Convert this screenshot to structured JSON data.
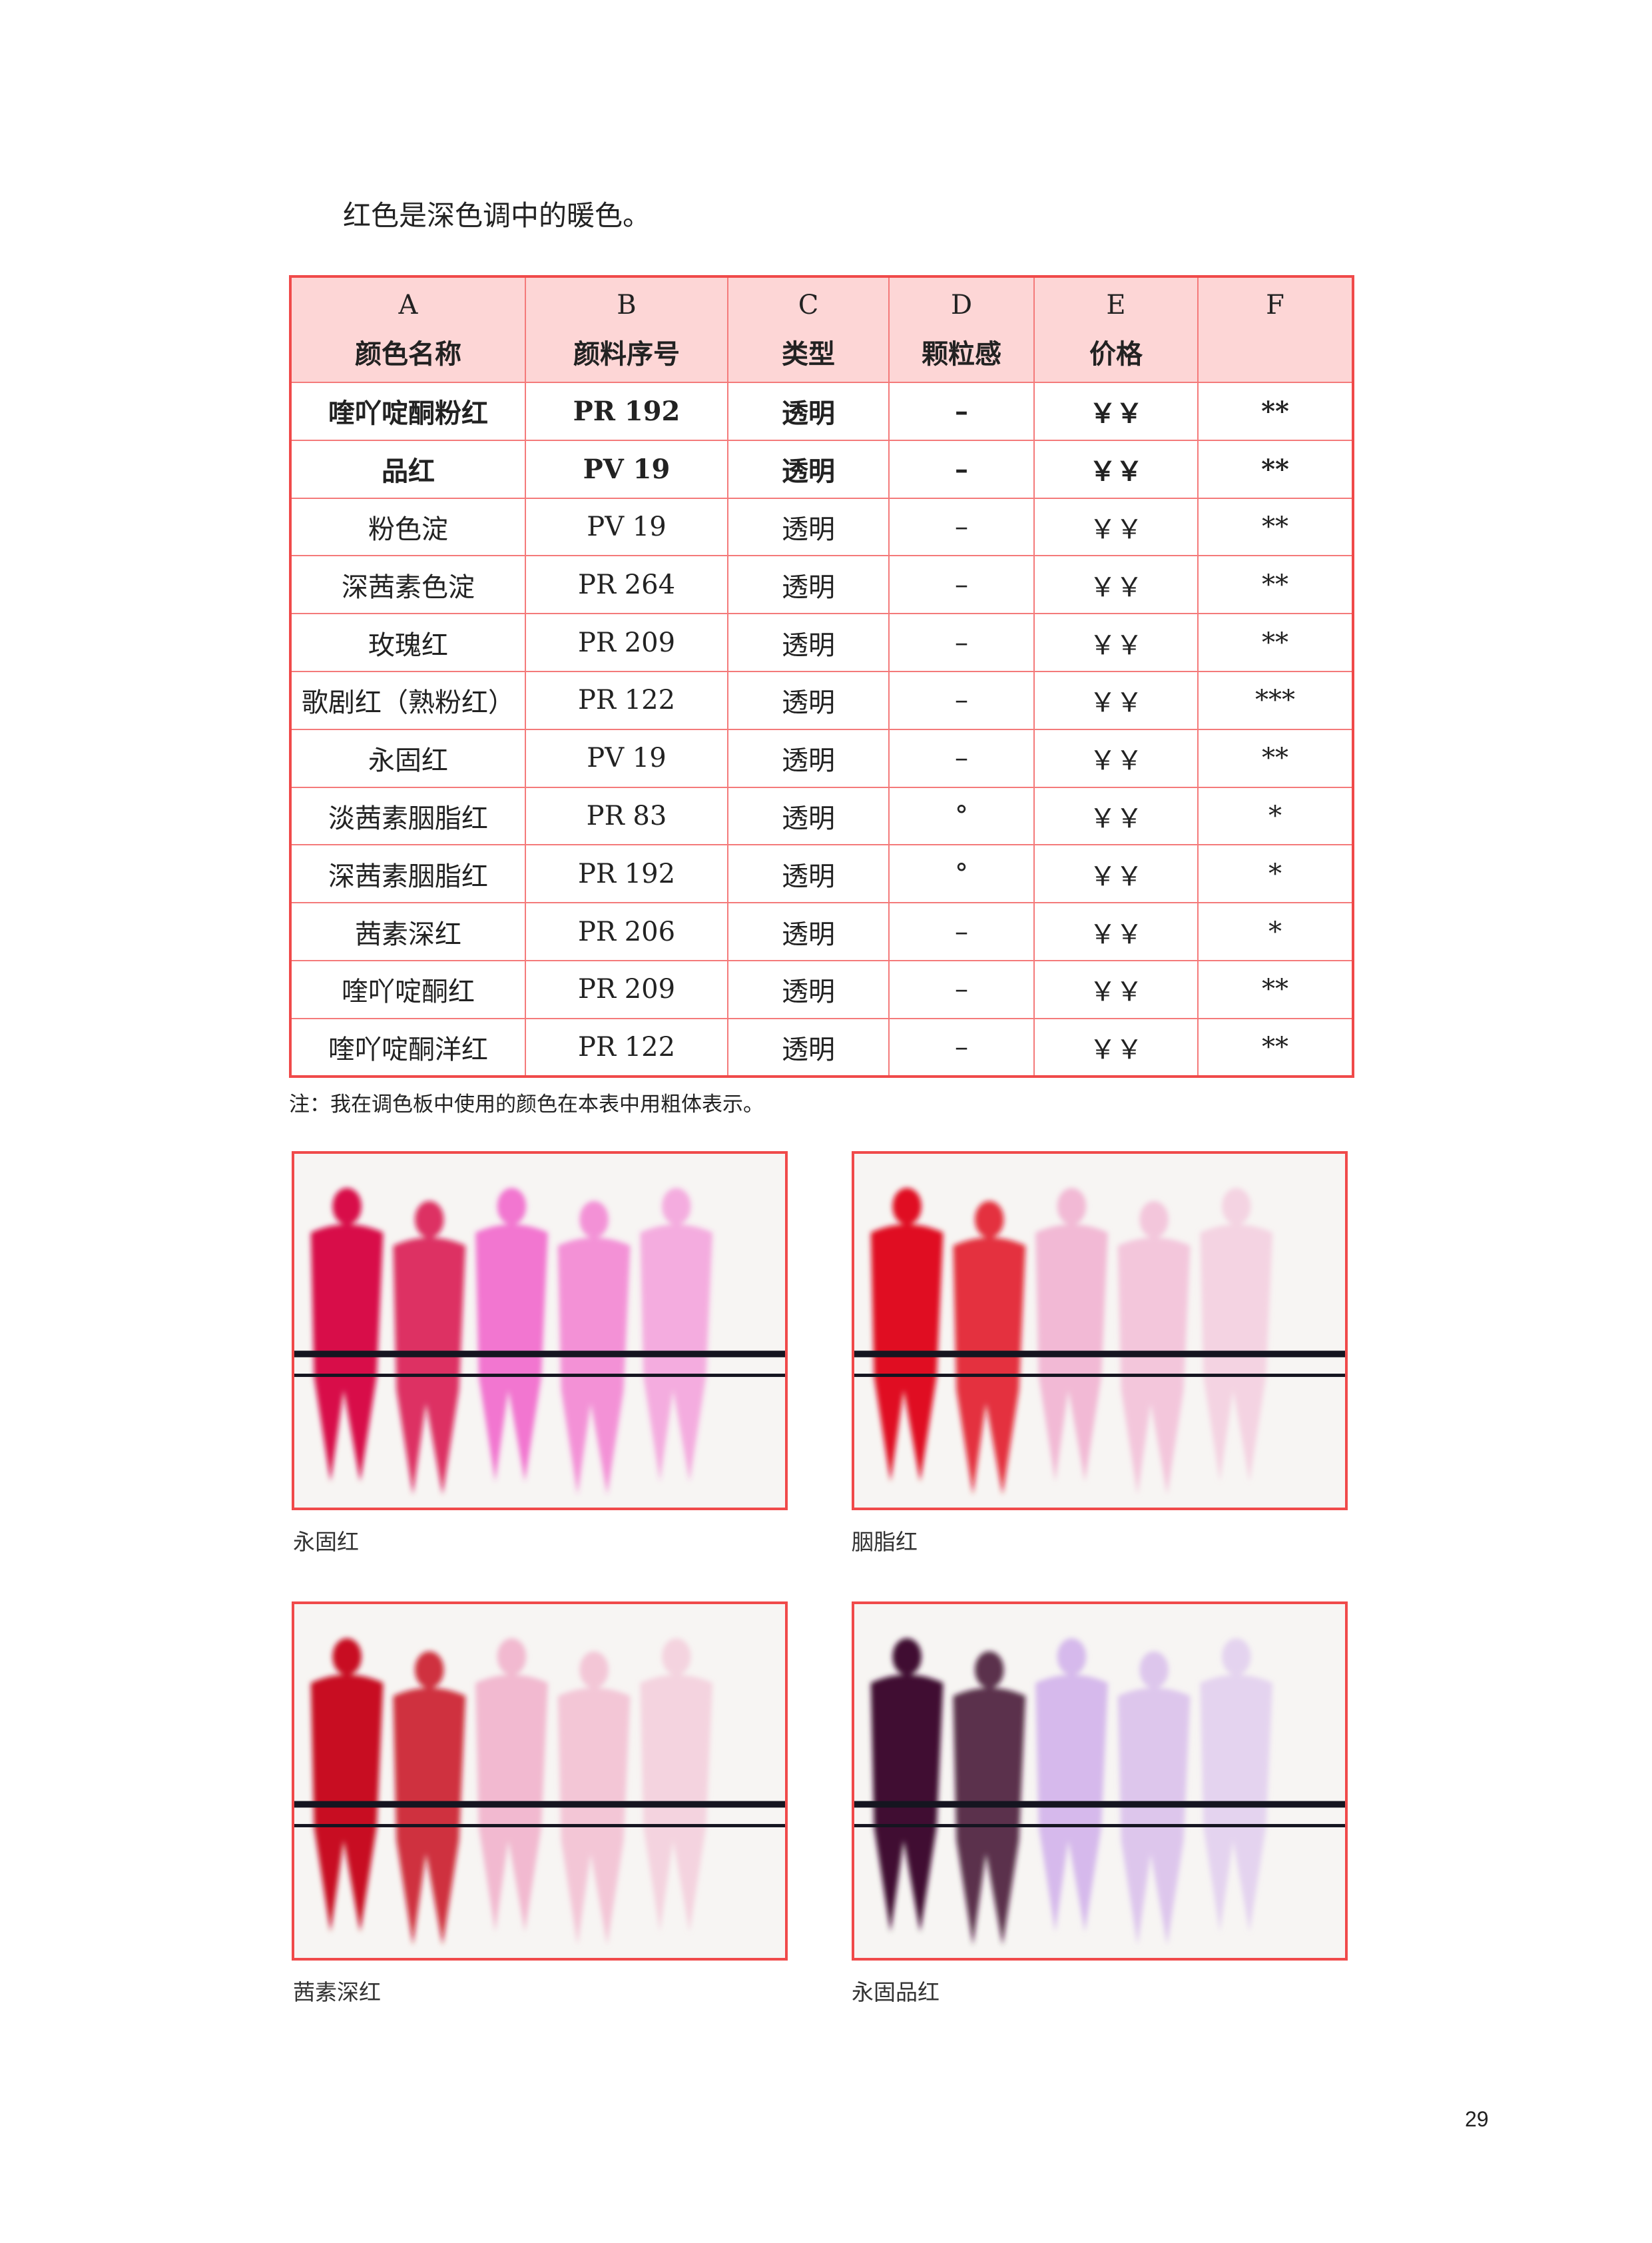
{
  "intro": "红色是深色调中的暖色。",
  "table": {
    "headers": [
      {
        "letter": "A",
        "label": "颜色名称"
      },
      {
        "letter": "B",
        "label": "颜料序号"
      },
      {
        "letter": "C",
        "label": "类型"
      },
      {
        "letter": "D",
        "label": "颗粒感"
      },
      {
        "letter": "E",
        "label": "价格"
      },
      {
        "letter": "F",
        "label": ""
      }
    ],
    "rows": [
      {
        "bold": true,
        "cells": [
          "喹吖啶酮粉红",
          "PR 192",
          "透明",
          "–",
          "￥￥",
          "**"
        ]
      },
      {
        "bold": true,
        "cells": [
          "品红",
          "PV 19",
          "透明",
          "–",
          "￥￥",
          "**"
        ]
      },
      {
        "bold": false,
        "cells": [
          "粉色淀",
          "PV 19",
          "透明",
          "–",
          "￥￥",
          "**"
        ]
      },
      {
        "bold": false,
        "cells": [
          "深茜素色淀",
          "PR 264",
          "透明",
          "–",
          "￥￥",
          "**"
        ]
      },
      {
        "bold": false,
        "cells": [
          "玫瑰红",
          "PR 209",
          "透明",
          "–",
          "￥￥",
          "**"
        ]
      },
      {
        "bold": false,
        "cells": [
          "歌剧红（熟粉红）",
          "PR 122",
          "透明",
          "–",
          "￥￥",
          "***"
        ]
      },
      {
        "bold": false,
        "cells": [
          "永固红",
          "PV 19",
          "透明",
          "–",
          "￥￥",
          "**"
        ]
      },
      {
        "bold": false,
        "cells": [
          "淡茜素胭脂红",
          "PR 83",
          "透明",
          "°",
          "￥￥",
          "*"
        ]
      },
      {
        "bold": false,
        "cells": [
          "深茜素胭脂红",
          "PR 192",
          "透明",
          "°",
          "￥￥",
          "*"
        ]
      },
      {
        "bold": false,
        "cells": [
          "茜素深红",
          "PR 206",
          "透明",
          "–",
          "￥￥",
          "*"
        ]
      },
      {
        "bold": false,
        "cells": [
          "喹吖啶酮红",
          "PR 209",
          "透明",
          "–",
          "￥￥",
          "**"
        ]
      },
      {
        "bold": false,
        "cells": [
          "喹吖啶酮洋红",
          "PR 122",
          "透明",
          "–",
          "￥￥",
          "**"
        ]
      }
    ]
  },
  "note": "注：我在调色板中使用的颜色在本表中用粗体表示。",
  "swatches": [
    {
      "caption": "永固红",
      "dark": "#d8104a",
      "light": "#f040c0"
    },
    {
      "caption": "胭脂红",
      "dark": "#e01020",
      "light": "#f0a0c8"
    },
    {
      "caption": "茜素深红",
      "dark": "#c81020",
      "light": "#f0a0c0"
    },
    {
      "caption": "永固品红",
      "dark": "#401030",
      "light": "#c8a0e8"
    }
  ],
  "page_number": "29",
  "colors": {
    "border": "#f04a4a",
    "header_bg": "#fdd6d6"
  }
}
